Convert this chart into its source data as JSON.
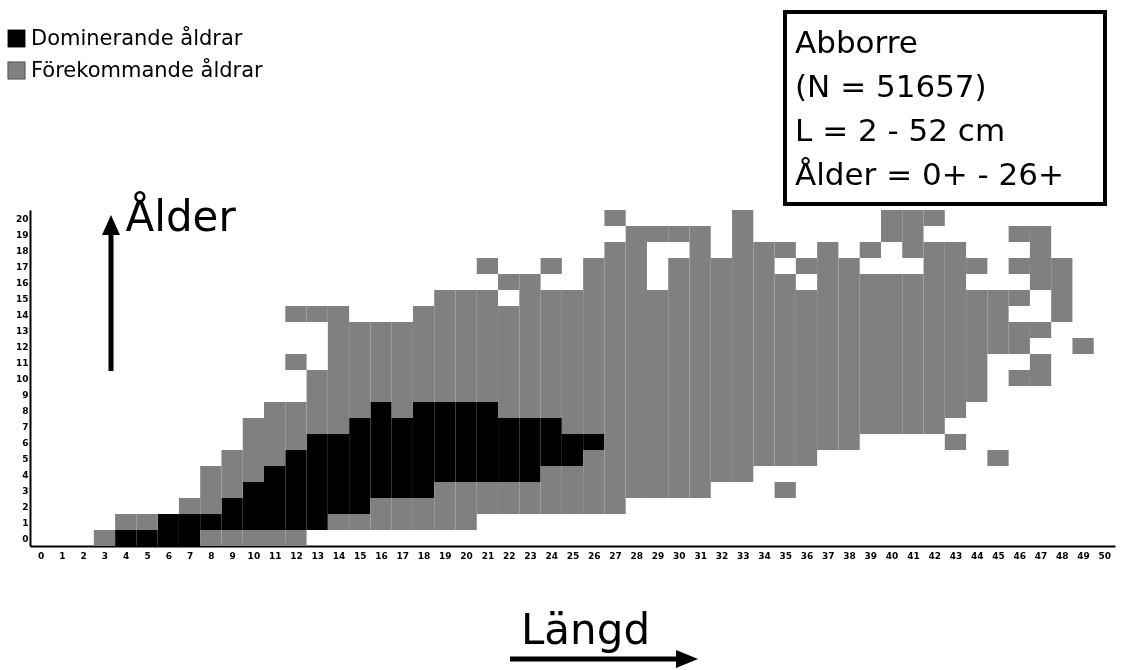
{
  "chart_data": {
    "type": "scatter",
    "marker": "square",
    "xlabel": "Längd",
    "ylabel": "Ålder",
    "legend": "top left",
    "annotations": [
      "Abborre",
      "(N = 51657)",
      "L = 2 - 52 cm",
      "Ålder = 0+ - 26+"
    ],
    "xlim": [
      -0.5,
      50.5
    ],
    "ylim": [
      -0.5,
      20.5
    ],
    "xticks": [
      0,
      1,
      2,
      3,
      4,
      5,
      6,
      7,
      8,
      9,
      10,
      11,
      12,
      13,
      14,
      15,
      16,
      17,
      18,
      19,
      20,
      21,
      22,
      23,
      24,
      25,
      26,
      27,
      28,
      29,
      30,
      31,
      32,
      33,
      34,
      35,
      36,
      37,
      38,
      39,
      40,
      41,
      42,
      43,
      44,
      45,
      46,
      47,
      48,
      49,
      50
    ],
    "yticks": [
      0,
      1,
      2,
      3,
      4,
      5,
      6,
      7,
      8,
      9,
      10,
      11,
      12,
      13,
      14,
      15,
      16,
      17,
      18,
      19,
      20
    ],
    "series": [
      {
        "name": "Dominerande åldrar",
        "color": "#000000",
        "x": [
          4,
          5,
          6,
          7,
          6,
          7,
          8,
          9,
          10,
          11,
          12,
          13,
          9,
          10,
          11,
          12,
          13,
          14,
          15,
          10,
          11,
          12,
          13,
          14,
          15,
          16,
          17,
          18,
          11,
          12,
          13,
          14,
          15,
          16,
          17,
          18,
          19,
          20,
          21,
          22,
          23,
          12,
          13,
          14,
          15,
          16,
          17,
          18,
          19,
          20,
          21,
          22,
          23,
          24,
          25,
          13,
          14,
          15,
          16,
          17,
          18,
          19,
          20,
          21,
          22,
          23,
          24,
          25,
          26,
          15,
          16,
          17,
          18,
          19,
          20,
          21,
          22,
          23,
          24,
          16,
          18,
          19,
          20,
          21
        ],
        "values": [
          0,
          0,
          0,
          0,
          1,
          1,
          1,
          1,
          1,
          1,
          1,
          1,
          2,
          2,
          2,
          2,
          2,
          2,
          2,
          3,
          3,
          3,
          3,
          3,
          3,
          3,
          3,
          3,
          4,
          4,
          4,
          4,
          4,
          4,
          4,
          4,
          4,
          4,
          4,
          4,
          4,
          5,
          5,
          5,
          5,
          5,
          5,
          5,
          5,
          5,
          5,
          5,
          5,
          5,
          5,
          6,
          6,
          6,
          6,
          6,
          6,
          6,
          6,
          6,
          6,
          6,
          6,
          6,
          6,
          7,
          7,
          7,
          7,
          7,
          7,
          7,
          7,
          7,
          7,
          8,
          8,
          8,
          8,
          8
        ]
      },
      {
        "name": "Förekommande åldrar",
        "color": "#808080",
        "x": [
          3,
          8,
          9,
          10,
          11,
          12,
          4,
          5,
          14,
          15,
          16,
          17,
          18,
          19,
          20,
          7,
          8,
          16,
          17,
          18,
          19,
          20,
          21,
          22,
          23,
          24,
          25,
          26,
          27,
          8,
          9,
          19,
          20,
          21,
          22,
          23,
          24,
          25,
          26,
          27,
          28,
          29,
          30,
          31,
          35,
          8,
          9,
          10,
          24,
          25,
          26,
          27,
          28,
          29,
          30,
          31,
          32,
          33,
          9,
          10,
          11,
          26,
          27,
          28,
          29,
          30,
          31,
          32,
          33,
          34,
          35,
          36,
          45,
          10,
          11,
          12,
          27,
          28,
          29,
          30,
          31,
          32,
          33,
          34,
          35,
          36,
          37,
          38,
          43,
          10,
          11,
          12,
          13,
          14,
          25,
          26,
          27,
          28,
          29,
          30,
          31,
          32,
          33,
          34,
          35,
          36,
          37,
          38,
          39,
          40,
          41,
          42,
          11,
          12,
          13,
          14,
          15,
          17,
          22,
          23,
          24,
          25,
          26,
          27,
          28,
          29,
          30,
          31,
          32,
          33,
          34,
          35,
          36,
          37,
          38,
          39,
          40,
          41,
          42,
          43,
          13,
          14,
          15,
          16,
          17,
          18,
          19,
          20,
          21,
          22,
          23,
          24,
          25,
          26,
          27,
          28,
          29,
          30,
          31,
          32,
          33,
          34,
          35,
          36,
          37,
          38,
          39,
          40,
          41,
          42,
          43,
          44,
          13,
          14,
          15,
          16,
          17,
          18,
          19,
          20,
          21,
          22,
          23,
          24,
          25,
          26,
          27,
          28,
          29,
          30,
          31,
          32,
          33,
          34,
          35,
          36,
          37,
          38,
          39,
          40,
          41,
          42,
          43,
          44,
          46,
          47,
          12,
          14,
          15,
          16,
          17,
          18,
          19,
          20,
          21,
          22,
          23,
          24,
          25,
          26,
          27,
          28,
          29,
          30,
          31,
          32,
          33,
          34,
          35,
          36,
          37,
          38,
          39,
          40,
          41,
          42,
          43,
          44,
          47,
          14,
          15,
          16,
          17,
          18,
          19,
          20,
          21,
          22,
          23,
          24,
          25,
          26,
          27,
          28,
          29,
          30,
          31,
          32,
          33,
          34,
          35,
          36,
          37,
          38,
          39,
          40,
          41,
          42,
          43,
          44,
          45,
          46,
          49,
          14,
          15,
          16,
          17,
          18,
          19,
          20,
          21,
          22,
          23,
          24,
          25,
          26,
          27,
          28,
          29,
          30,
          31,
          32,
          33,
          34,
          35,
          36,
          37,
          38,
          39,
          40,
          41,
          42,
          43,
          44,
          45,
          46,
          47,
          12,
          13,
          14,
          18,
          19,
          20,
          21,
          22,
          23,
          24,
          25,
          26,
          27,
          28,
          29,
          30,
          31,
          32,
          33,
          34,
          35,
          36,
          37,
          38,
          39,
          40,
          41,
          42,
          43,
          44,
          45,
          48,
          19,
          20,
          21,
          23,
          24,
          25,
          26,
          27,
          28,
          29,
          30,
          31,
          32,
          33,
          34,
          35,
          36,
          37,
          38,
          39,
          40,
          41,
          42,
          43,
          44,
          45,
          46,
          48,
          22,
          23,
          26,
          27,
          28,
          30,
          31,
          32,
          33,
          34,
          35,
          37,
          38,
          39,
          40,
          41,
          42,
          43,
          47,
          48,
          21,
          24,
          26,
          27,
          28,
          30,
          31,
          32,
          33,
          34,
          36,
          37,
          38,
          42,
          43,
          44,
          46,
          47,
          48,
          27,
          28,
          31,
          33,
          34,
          35,
          37,
          39,
          41,
          42,
          43,
          47,
          28,
          29,
          30,
          31,
          33,
          40,
          41,
          46,
          47,
          27,
          33,
          40,
          41,
          42
        ],
        "values": [
          0,
          0,
          0,
          0,
          0,
          0,
          1,
          1,
          1,
          1,
          1,
          1,
          1,
          1,
          1,
          2,
          2,
          2,
          2,
          2,
          2,
          2,
          2,
          2,
          2,
          2,
          2,
          2,
          2,
          3,
          3,
          3,
          3,
          3,
          3,
          3,
          3,
          3,
          3,
          3,
          3,
          3,
          3,
          3,
          3,
          4,
          4,
          4,
          4,
          4,
          4,
          4,
          4,
          4,
          4,
          4,
          4,
          4,
          5,
          5,
          5,
          5,
          5,
          5,
          5,
          5,
          5,
          5,
          5,
          5,
          5,
          5,
          5,
          6,
          6,
          6,
          6,
          6,
          6,
          6,
          6,
          6,
          6,
          6,
          6,
          6,
          6,
          6,
          6,
          7,
          7,
          7,
          7,
          7,
          7,
          7,
          7,
          7,
          7,
          7,
          7,
          7,
          7,
          7,
          7,
          7,
          7,
          7,
          7,
          7,
          7,
          7,
          8,
          8,
          8,
          8,
          8,
          8,
          8,
          8,
          8,
          8,
          8,
          8,
          8,
          8,
          8,
          8,
          8,
          8,
          8,
          8,
          8,
          8,
          8,
          8,
          8,
          8,
          8,
          8,
          9,
          9,
          9,
          9,
          9,
          9,
          9,
          9,
          9,
          9,
          9,
          9,
          9,
          9,
          9,
          9,
          9,
          9,
          9,
          9,
          9,
          9,
          9,
          9,
          9,
          9,
          9,
          9,
          9,
          9,
          9,
          9,
          10,
          10,
          10,
          10,
          10,
          10,
          10,
          10,
          10,
          10,
          10,
          10,
          10,
          10,
          10,
          10,
          10,
          10,
          10,
          10,
          10,
          10,
          10,
          10,
          10,
          10,
          10,
          10,
          10,
          10,
          10,
          10,
          10,
          10,
          11,
          11,
          11,
          11,
          11,
          11,
          11,
          11,
          11,
          11,
          11,
          11,
          11,
          11,
          11,
          11,
          11,
          11,
          11,
          11,
          11,
          11,
          11,
          11,
          11,
          11,
          11,
          11,
          11,
          11,
          11,
          11,
          11,
          12,
          12,
          12,
          12,
          12,
          12,
          12,
          12,
          12,
          12,
          12,
          12,
          12,
          12,
          12,
          12,
          12,
          12,
          12,
          12,
          12,
          12,
          12,
          12,
          12,
          12,
          12,
          12,
          12,
          12,
          12,
          12,
          12,
          12,
          13,
          13,
          13,
          13,
          13,
          13,
          13,
          13,
          13,
          13,
          13,
          13,
          13,
          13,
          13,
          13,
          13,
          13,
          13,
          13,
          13,
          13,
          13,
          13,
          13,
          13,
          13,
          13,
          13,
          13,
          13,
          13,
          13,
          13,
          14,
          14,
          14,
          14,
          14,
          14,
          14,
          14,
          14,
          14,
          14,
          14,
          14,
          14,
          14,
          14,
          14,
          14,
          14,
          14,
          14,
          14,
          14,
          14,
          14,
          14,
          14,
          14,
          14,
          14,
          14,
          14,
          15,
          15,
          15,
          15,
          15,
          15,
          15,
          15,
          15,
          15,
          15,
          15,
          15,
          15,
          15,
          15,
          15,
          15,
          15,
          15,
          15,
          15,
          15,
          15,
          15,
          15,
          15,
          15,
          16,
          16,
          16,
          16,
          16,
          16,
          16,
          16,
          16,
          16,
          16,
          16,
          16,
          16,
          16,
          16,
          16,
          16,
          16,
          16,
          17,
          17,
          17,
          17,
          17,
          17,
          17,
          17,
          17,
          17,
          17,
          17,
          17,
          17,
          17,
          17,
          17,
          17,
          17,
          18,
          18,
          18,
          18,
          18,
          18,
          18,
          18,
          18,
          18,
          18,
          18,
          19,
          19,
          19,
          19,
          19,
          19,
          19,
          19,
          19,
          20,
          20,
          20,
          20,
          20
        ]
      }
    ]
  }
}
